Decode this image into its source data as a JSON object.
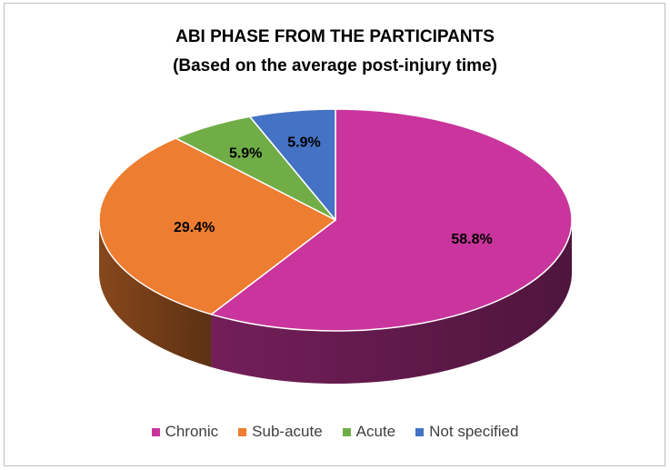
{
  "chart_data": {
    "type": "pie",
    "style": "3d",
    "title": "ABI PHASE FROM THE PARTICIPANTS",
    "subtitle": "(Based on the average post-injury time)",
    "categories": [
      "Chronic",
      "Sub-acute",
      "Acute",
      "Not specified"
    ],
    "values": [
      58.8,
      29.4,
      5.9,
      5.9
    ],
    "data_labels": [
      "58.8%",
      "29.4%",
      "5.9%",
      "5.9%"
    ],
    "colors": [
      "#c9359c",
      "#ed7d31",
      "#70ad47",
      "#4472c4"
    ],
    "legend_position": "bottom"
  }
}
